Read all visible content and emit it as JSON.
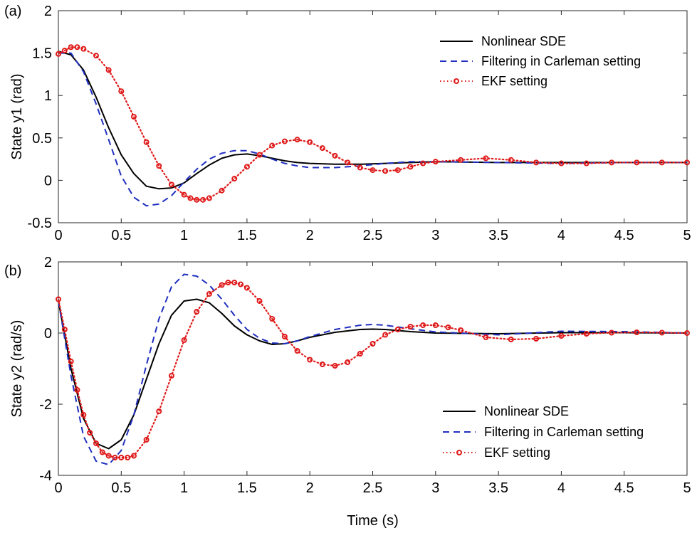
{
  "chart_data": [
    {
      "type": "line",
      "panel_label": "(a)",
      "xlabel": "",
      "ylabel": "State y1  (rad)",
      "xlim": [
        0,
        5
      ],
      "ylim": [
        -0.5,
        2
      ],
      "xticks": [
        "0",
        "0.5",
        "1",
        "1.5",
        "2",
        "2.5",
        "3",
        "3.5",
        "4",
        "4.5",
        "5"
      ],
      "yticks": [
        "-0.5",
        "0",
        "0.5",
        "1",
        "1.5",
        "2"
      ],
      "grid": false,
      "legend_position": "top-right",
      "series": [
        {
          "name": "Nonlinear SDE",
          "color": "#000000",
          "style": "solid",
          "x": [
            0,
            0.1,
            0.2,
            0.3,
            0.4,
            0.5,
            0.6,
            0.7,
            0.8,
            0.9,
            1.0,
            1.1,
            1.2,
            1.3,
            1.4,
            1.5,
            1.6,
            1.7,
            1.8,
            1.9,
            2.0,
            2.2,
            2.4,
            2.6,
            2.8,
            3.0,
            3.5,
            4.0,
            4.5,
            5.0
          ],
          "y": [
            1.52,
            1.48,
            1.3,
            0.98,
            0.62,
            0.3,
            0.08,
            -0.07,
            -0.1,
            -0.09,
            -0.03,
            0.08,
            0.18,
            0.26,
            0.3,
            0.31,
            0.29,
            0.26,
            0.23,
            0.21,
            0.2,
            0.19,
            0.19,
            0.2,
            0.21,
            0.22,
            0.21,
            0.21,
            0.21,
            0.21
          ]
        },
        {
          "name": "Filtering in Carleman setting",
          "color": "#1f2fbf",
          "style": "dashed",
          "x": [
            0,
            0.1,
            0.2,
            0.3,
            0.4,
            0.5,
            0.6,
            0.7,
            0.8,
            0.9,
            1.0,
            1.1,
            1.2,
            1.3,
            1.4,
            1.5,
            1.6,
            1.7,
            1.8,
            1.9,
            2.0,
            2.2,
            2.4,
            2.6,
            2.8,
            3.0,
            3.5,
            4.0,
            4.5,
            5.0
          ],
          "y": [
            1.5,
            1.5,
            1.28,
            0.9,
            0.48,
            0.05,
            -0.2,
            -0.3,
            -0.28,
            -0.18,
            -0.02,
            0.13,
            0.25,
            0.32,
            0.35,
            0.35,
            0.31,
            0.25,
            0.2,
            0.17,
            0.15,
            0.15,
            0.17,
            0.2,
            0.22,
            0.22,
            0.21,
            0.2,
            0.21,
            0.21
          ]
        },
        {
          "name": "EKF setting",
          "color": "#e01a1a",
          "style": "dotted-circle",
          "x": [
            0,
            0.05,
            0.1,
            0.15,
            0.2,
            0.3,
            0.4,
            0.5,
            0.6,
            0.7,
            0.8,
            0.9,
            1.0,
            1.05,
            1.1,
            1.15,
            1.2,
            1.3,
            1.4,
            1.5,
            1.6,
            1.7,
            1.8,
            1.9,
            2.0,
            2.1,
            2.2,
            2.3,
            2.4,
            2.5,
            2.6,
            2.7,
            2.8,
            2.9,
            3.0,
            3.2,
            3.4,
            3.6,
            3.8,
            4.0,
            4.2,
            4.4,
            4.6,
            4.8,
            5.0
          ],
          "y": [
            1.49,
            1.53,
            1.57,
            1.57,
            1.55,
            1.47,
            1.3,
            1.05,
            0.75,
            0.45,
            0.17,
            -0.05,
            -0.17,
            -0.21,
            -0.23,
            -0.23,
            -0.21,
            -0.12,
            0.02,
            0.16,
            0.3,
            0.41,
            0.46,
            0.48,
            0.45,
            0.38,
            0.29,
            0.21,
            0.15,
            0.12,
            0.11,
            0.12,
            0.16,
            0.2,
            0.22,
            0.24,
            0.26,
            0.24,
            0.21,
            0.2,
            0.2,
            0.21,
            0.21,
            0.21,
            0.21
          ]
        }
      ]
    },
    {
      "type": "line",
      "panel_label": "(b)",
      "xlabel": "Time (s)",
      "ylabel": "State y2  (rad/s)",
      "xlim": [
        0,
        5
      ],
      "ylim": [
        -4,
        2
      ],
      "xticks": [
        "0",
        "0.5",
        "1",
        "1.5",
        "2",
        "2.5",
        "3",
        "3.5",
        "4",
        "4.5",
        "5"
      ],
      "yticks": [
        "-4",
        "-2",
        "0",
        "2"
      ],
      "grid": false,
      "legend_position": "bottom-right",
      "series": [
        {
          "name": "Nonlinear SDE",
          "color": "#000000",
          "style": "solid",
          "x": [
            0,
            0.1,
            0.2,
            0.3,
            0.4,
            0.5,
            0.6,
            0.7,
            0.8,
            0.9,
            1.0,
            1.1,
            1.2,
            1.3,
            1.4,
            1.5,
            1.6,
            1.7,
            1.8,
            1.9,
            2.0,
            2.2,
            2.4,
            2.5,
            2.6,
            2.8,
            3.0,
            3.5,
            4.0,
            4.5,
            5.0
          ],
          "y": [
            0.9,
            -1.0,
            -2.4,
            -3.1,
            -3.25,
            -3.0,
            -2.3,
            -1.3,
            -0.3,
            0.5,
            0.9,
            0.95,
            0.85,
            0.55,
            0.2,
            -0.05,
            -0.22,
            -0.32,
            -0.3,
            -0.22,
            -0.12,
            0.02,
            0.1,
            0.11,
            0.1,
            0.04,
            0.0,
            -0.02,
            0.01,
            0.01,
            0.0
          ]
        },
        {
          "name": "Filtering in Carleman setting",
          "color": "#1f2fbf",
          "style": "dashed",
          "x": [
            0,
            0.1,
            0.2,
            0.3,
            0.4,
            0.5,
            0.6,
            0.7,
            0.8,
            0.9,
            1.0,
            1.1,
            1.2,
            1.3,
            1.4,
            1.5,
            1.6,
            1.7,
            1.8,
            1.9,
            2.0,
            2.2,
            2.4,
            2.5,
            2.6,
            2.8,
            3.0,
            3.5,
            4.0,
            4.5,
            5.0
          ],
          "y": [
            0.9,
            -1.2,
            -2.9,
            -3.6,
            -3.7,
            -3.3,
            -2.3,
            -0.9,
            0.4,
            1.3,
            1.65,
            1.6,
            1.35,
            0.95,
            0.5,
            0.1,
            -0.15,
            -0.28,
            -0.3,
            -0.22,
            -0.1,
            0.1,
            0.22,
            0.24,
            0.22,
            0.12,
            0.03,
            -0.05,
            0.05,
            0.04,
            0.0
          ]
        },
        {
          "name": "EKF setting",
          "color": "#e01a1a",
          "style": "dotted-circle",
          "x": [
            0,
            0.05,
            0.1,
            0.15,
            0.2,
            0.25,
            0.3,
            0.35,
            0.4,
            0.45,
            0.5,
            0.55,
            0.6,
            0.7,
            0.8,
            0.9,
            1.0,
            1.1,
            1.2,
            1.3,
            1.35,
            1.4,
            1.45,
            1.5,
            1.6,
            1.7,
            1.8,
            1.9,
            2.0,
            2.1,
            2.2,
            2.3,
            2.4,
            2.5,
            2.6,
            2.7,
            2.8,
            2.9,
            3.0,
            3.1,
            3.2,
            3.4,
            3.6,
            3.8,
            4.0,
            4.2,
            4.4,
            4.6,
            4.8,
            5.0
          ],
          "y": [
            0.95,
            0.1,
            -0.8,
            -1.6,
            -2.3,
            -2.8,
            -3.1,
            -3.35,
            -3.45,
            -3.5,
            -3.5,
            -3.5,
            -3.45,
            -3.0,
            -2.2,
            -1.2,
            -0.2,
            0.6,
            1.1,
            1.35,
            1.42,
            1.42,
            1.37,
            1.27,
            0.9,
            0.4,
            -0.1,
            -0.5,
            -0.75,
            -0.88,
            -0.92,
            -0.82,
            -0.58,
            -0.3,
            -0.05,
            0.1,
            0.18,
            0.22,
            0.22,
            0.16,
            0.08,
            -0.12,
            -0.18,
            -0.16,
            -0.08,
            -0.02,
            0.01,
            0.02,
            0.01,
            0.0
          ]
        }
      ]
    }
  ]
}
